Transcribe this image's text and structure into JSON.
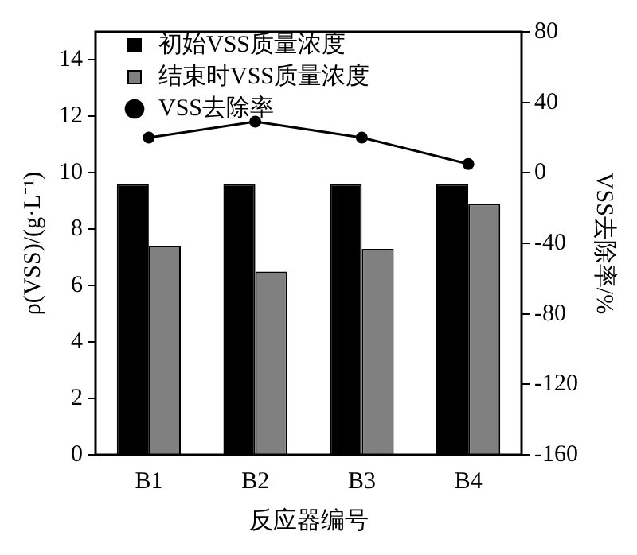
{
  "chart_data": {
    "type": "bar",
    "categories": [
      "B1",
      "B2",
      "B3",
      "B4"
    ],
    "xlabel": "反应器编号",
    "ylabel": "ρ(VSS)/(g·L⁻¹)",
    "y2label": "VSS去除率/%",
    "series": [
      {
        "name": "初始VSS质量浓度",
        "color": "#000000",
        "values": [
          9.6,
          9.6,
          9.6,
          9.6
        ]
      },
      {
        "name": "结束时VSS质量浓度",
        "color": "#808080",
        "values": [
          7.4,
          6.5,
          7.3,
          8.9
        ]
      },
      {
        "name": "VSS去除率",
        "type": "line",
        "axis": "y2",
        "color": "#000000",
        "values": [
          20,
          29,
          20,
          5
        ]
      }
    ],
    "ylim": [
      0,
      15
    ],
    "yticks": [
      0,
      2,
      4,
      6,
      8,
      10,
      12,
      14
    ],
    "y2lim": [
      -160,
      80
    ],
    "y2ticks": [
      -160,
      -120,
      -80,
      -40,
      0,
      40,
      80
    ],
    "legend": "top left",
    "marker": "circle",
    "line_style": "solid"
  }
}
